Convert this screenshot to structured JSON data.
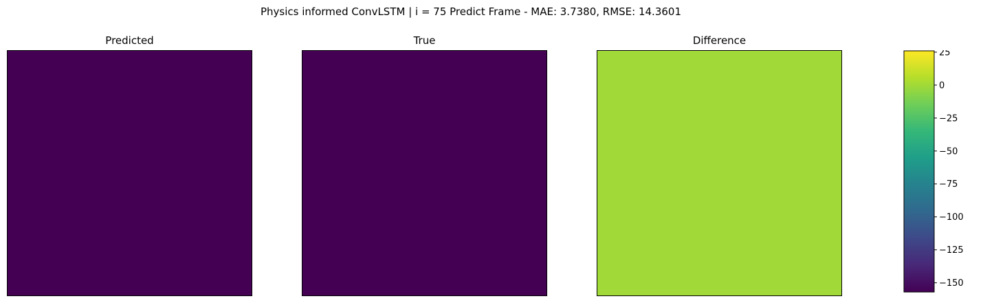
{
  "figure": {
    "suptitle": "Physics informed ConvLSTM | i = 75 Predict Frame - MAE: 3.7380, RMSE: 14.3601"
  },
  "colormap": {
    "name": "viridis",
    "stops": [
      "#440154",
      "#482878",
      "#3e4989",
      "#31688e",
      "#26828e",
      "#1f9e89",
      "#35b779",
      "#6ece58",
      "#b5de2b",
      "#fde725"
    ]
  },
  "chart_data": [
    {
      "type": "heatmap",
      "title": "Predicted",
      "grid": {
        "rows": 40,
        "cols": 40
      },
      "background_value": -157,
      "vmin": -157,
      "vmax": -157,
      "axes_ticks": "none",
      "colorbar": false
    },
    {
      "type": "heatmap",
      "title": "True",
      "grid": {
        "rows": 40,
        "cols": 40
      },
      "background_value": -157,
      "vmin": -157,
      "vmax": -157,
      "axes_ticks": "none",
      "colorbar": false
    },
    {
      "type": "heatmap",
      "title": "Difference",
      "grid": {
        "rows": 40,
        "cols": 40
      },
      "background_value": 0,
      "vmin": -157,
      "vmax": 26,
      "axes_ticks": "none",
      "colorbar": {
        "ticks": [
          25,
          0,
          -25,
          -50,
          -75,
          -100,
          -125,
          -150
        ],
        "tick_labels": [
          "25",
          "0",
          "−25",
          "−50",
          "−75",
          "−100",
          "−125",
          "−150"
        ],
        "range": [
          -157,
          26
        ]
      }
    }
  ]
}
